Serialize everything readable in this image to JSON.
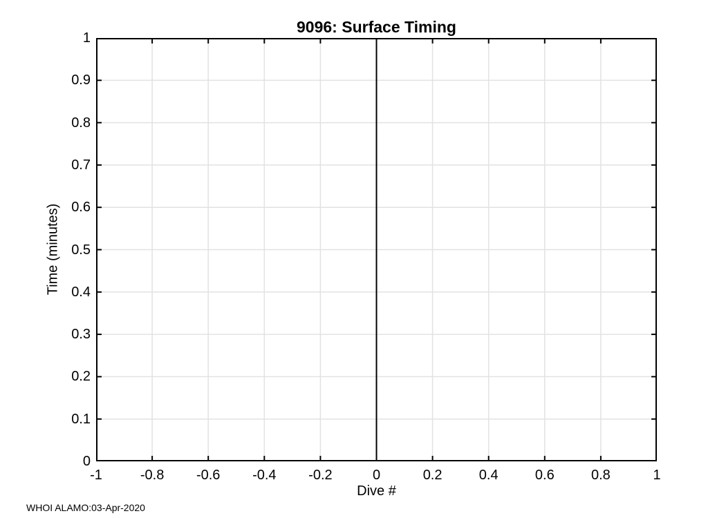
{
  "figure": {
    "background": "#ffffff"
  },
  "chart_data": {
    "type": "line",
    "title": "9096: Surface Timing",
    "xlabel": "Dive #",
    "ylabel": "Time (minutes)",
    "xlim": [
      -1,
      1
    ],
    "ylim": [
      0,
      1
    ],
    "xticks": [
      -1,
      -0.8,
      -0.6,
      -0.4,
      -0.2,
      0,
      0.2,
      0.4,
      0.6,
      0.8,
      1
    ],
    "xtick_labels": [
      "-1",
      "-0.8",
      "-0.6",
      "-0.4",
      "-0.2",
      "0",
      "0.2",
      "0.4",
      "0.6",
      "0.8",
      "1"
    ],
    "yticks": [
      0,
      0.1,
      0.2,
      0.3,
      0.4,
      0.5,
      0.6,
      0.7,
      0.8,
      0.9,
      1
    ],
    "ytick_labels": [
      "0",
      "0.1",
      "0.2",
      "0.3",
      "0.4",
      "0.5",
      "0.6",
      "0.7",
      "0.8",
      "0.9",
      "1"
    ],
    "grid": true,
    "legend": null,
    "series": [
      {
        "name": "surface-timing-line",
        "x": [
          0,
          0
        ],
        "y": [
          0,
          1
        ],
        "color": "#000000",
        "style": "solid",
        "line_width": 2
      }
    ],
    "annotation": "WHOI ALAMO:03-Apr-2020",
    "colors": {
      "axis": "#000000",
      "grid": "#e2e2e2",
      "background": "#ffffff",
      "text": "#000000"
    }
  }
}
